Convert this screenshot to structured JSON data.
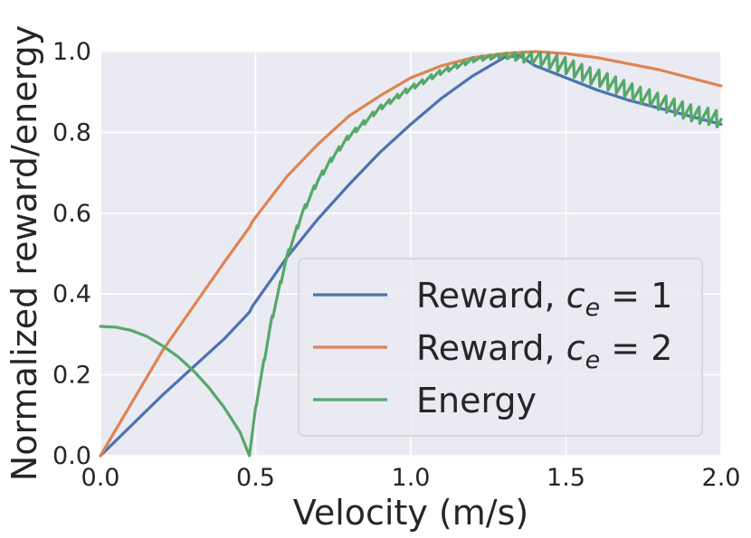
{
  "chart_data": {
    "type": "line",
    "title": "",
    "xlabel": "Velocity (m/s)",
    "ylabel": "Normalized reward/energy",
    "xlim": [
      0.0,
      2.0
    ],
    "ylim": [
      0.0,
      1.0
    ],
    "xticks": [
      "0.0",
      "0.5",
      "1.0",
      "1.5",
      "2.0"
    ],
    "yticks": [
      "0.0",
      "0.2",
      "0.4",
      "0.6",
      "0.8",
      "1.0"
    ],
    "grid": true,
    "legend_position": "lower-right",
    "series": [
      {
        "name": "Reward, c_e = 1",
        "legend_prefix": "Reward, ",
        "legend_var": "c",
        "legend_sub": "e",
        "legend_suffix": " = 1",
        "color": "#4c72b0",
        "x": [
          0.0,
          0.1,
          0.2,
          0.3,
          0.4,
          0.48,
          0.49,
          0.55,
          0.6,
          0.7,
          0.8,
          0.9,
          1.0,
          1.1,
          1.2,
          1.3,
          1.35,
          1.4,
          1.5,
          1.6,
          1.7,
          1.8,
          1.9,
          2.0
        ],
        "y": [
          0.0,
          0.075,
          0.15,
          0.22,
          0.29,
          0.355,
          0.37,
          0.435,
          0.49,
          0.585,
          0.67,
          0.75,
          0.82,
          0.885,
          0.94,
          0.985,
          0.99,
          0.965,
          0.935,
          0.905,
          0.88,
          0.86,
          0.84,
          0.82
        ]
      },
      {
        "name": "Reward, c_e = 2",
        "legend_prefix": "Reward, ",
        "legend_var": "c",
        "legend_sub": "e",
        "legend_suffix": " = 2",
        "color": "#dd8452",
        "x": [
          0.0,
          0.1,
          0.2,
          0.3,
          0.4,
          0.48,
          0.49,
          0.55,
          0.6,
          0.7,
          0.8,
          0.9,
          1.0,
          1.1,
          1.2,
          1.3,
          1.4,
          1.5,
          1.6,
          1.7,
          1.8,
          1.9,
          2.0
        ],
        "y": [
          0.0,
          0.13,
          0.26,
          0.37,
          0.48,
          0.565,
          0.58,
          0.64,
          0.69,
          0.77,
          0.84,
          0.89,
          0.935,
          0.965,
          0.985,
          0.995,
          1.0,
          0.995,
          0.985,
          0.97,
          0.955,
          0.935,
          0.915
        ]
      },
      {
        "name": "Energy",
        "legend_prefix": "Energy",
        "legend_var": "",
        "legend_sub": "",
        "legend_suffix": "",
        "color": "#55a868",
        "x": [
          0.0,
          0.05,
          0.1,
          0.15,
          0.2,
          0.25,
          0.3,
          0.35,
          0.4,
          0.45,
          0.48,
          0.5,
          0.55,
          0.6,
          0.65,
          0.7,
          0.75,
          0.8,
          0.9,
          1.0,
          1.1,
          1.2,
          1.3,
          1.4,
          1.5,
          1.6,
          1.7,
          1.8,
          1.9,
          2.0
        ],
        "y": [
          0.32,
          0.318,
          0.31,
          0.295,
          0.272,
          0.245,
          0.21,
          0.168,
          0.118,
          0.058,
          0.0,
          0.12,
          0.33,
          0.49,
          0.6,
          0.68,
          0.74,
          0.79,
          0.86,
          0.91,
          0.95,
          0.98,
          0.99,
          0.985,
          0.965,
          0.935,
          0.905,
          0.875,
          0.85,
          0.83
        ],
        "oscillation": true
      }
    ]
  }
}
